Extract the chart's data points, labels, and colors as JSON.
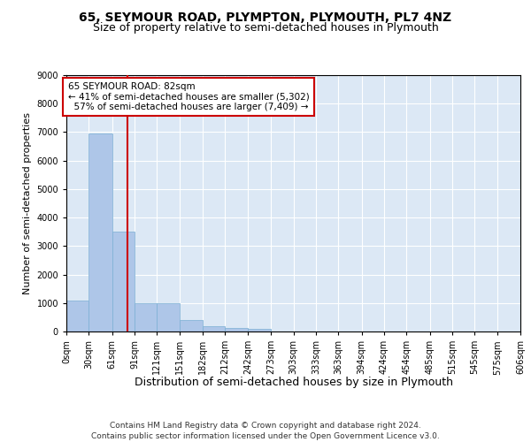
{
  "title": "65, SEYMOUR ROAD, PLYMPTON, PLYMOUTH, PL7 4NZ",
  "subtitle": "Size of property relative to semi-detached houses in Plymouth",
  "xlabel": "Distribution of semi-detached houses by size in Plymouth",
  "ylabel": "Number of semi-detached properties",
  "footer_line1": "Contains HM Land Registry data © Crown copyright and database right 2024.",
  "footer_line2": "Contains public sector information licensed under the Open Government Licence v3.0.",
  "property_size": 82,
  "property_label": "65 SEYMOUR ROAD: 82sqm",
  "pct_smaller": 41,
  "n_smaller": 5302,
  "pct_larger": 57,
  "n_larger": 7409,
  "bin_edges": [
    0,
    30,
    61,
    91,
    121,
    151,
    182,
    212,
    242,
    273,
    303,
    333,
    363,
    394,
    424,
    454,
    485,
    515,
    545,
    575,
    606
  ],
  "bar_heights": [
    1100,
    6950,
    3500,
    1000,
    1000,
    400,
    200,
    130,
    100,
    0,
    0,
    0,
    0,
    0,
    0,
    0,
    0,
    0,
    0,
    0
  ],
  "bar_color": "#aec6e8",
  "bar_edge_color": "#7bafd4",
  "vline_color": "#cc0000",
  "vline_x": 82,
  "annotation_box_color": "#ffffff",
  "annotation_box_edge": "#cc0000",
  "ylim": [
    0,
    9000
  ],
  "yticks": [
    0,
    1000,
    2000,
    3000,
    4000,
    5000,
    6000,
    7000,
    8000,
    9000
  ],
  "bg_color": "#dce8f5",
  "grid_color": "#ffffff",
  "title_fontsize": 10,
  "subtitle_fontsize": 9,
  "xlabel_fontsize": 9,
  "ylabel_fontsize": 8,
  "tick_fontsize": 7,
  "annotation_fontsize": 7.5,
  "footer_fontsize": 6.5
}
